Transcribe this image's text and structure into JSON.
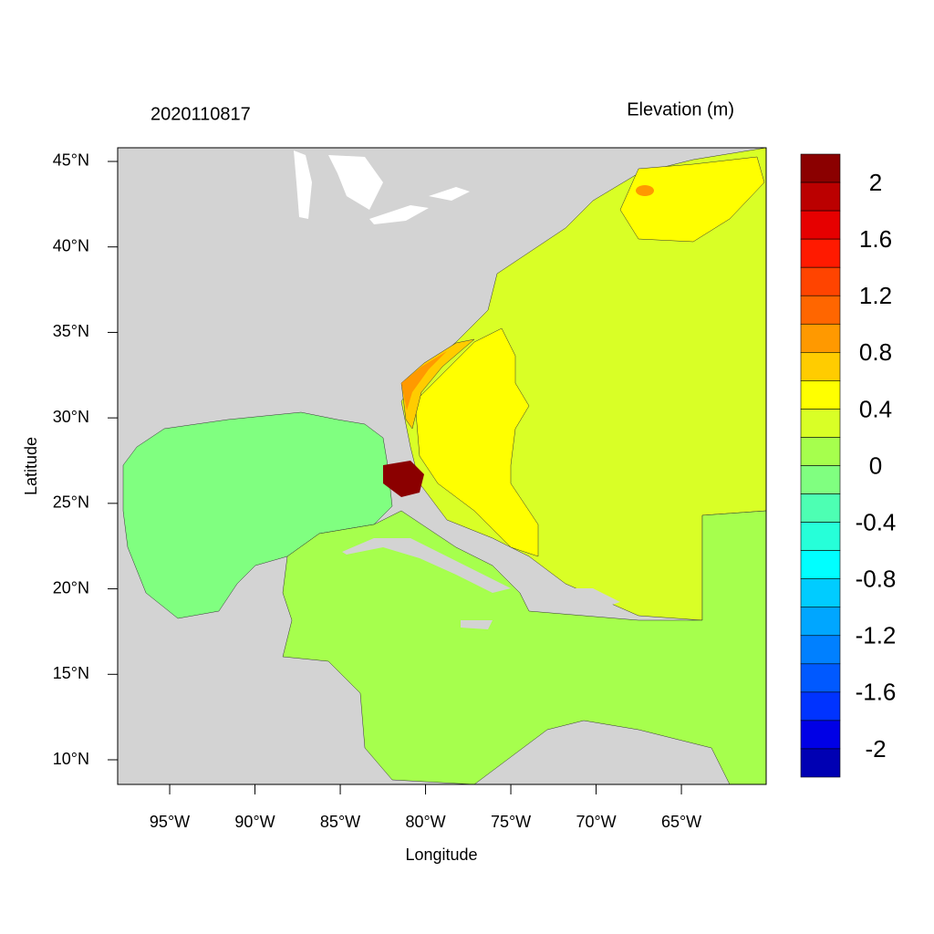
{
  "title_left": "2020110817",
  "title_right": "Elevation (m)",
  "x_label": "Longitude",
  "y_label": "Latitude",
  "xlim": [
    -98.05,
    -60.03
  ],
  "ylim": [
    8.56,
    45.8
  ],
  "xticks": [
    {
      "value": -95,
      "label": "95°W"
    },
    {
      "value": -90,
      "label": "90°W"
    },
    {
      "value": -85,
      "label": "85°W"
    },
    {
      "value": -80,
      "label": "80°W"
    },
    {
      "value": -75,
      "label": "75°W"
    },
    {
      "value": -70,
      "label": "70°W"
    },
    {
      "value": -65,
      "label": "65°W"
    }
  ],
  "yticks": [
    {
      "value": 10,
      "label": "10°N"
    },
    {
      "value": 15,
      "label": "15°N"
    },
    {
      "value": 20,
      "label": "20°N"
    },
    {
      "value": 25,
      "label": "25°N"
    },
    {
      "value": 30,
      "label": "30°N"
    },
    {
      "value": 35,
      "label": "35°N"
    },
    {
      "value": 40,
      "label": "40°N"
    },
    {
      "value": 45,
      "label": "45°N"
    }
  ],
  "colorbar": {
    "levels": [
      2,
      1.6,
      1.2,
      0.8,
      0.4,
      0,
      -0.4,
      -0.8,
      -1.2,
      -1.6,
      -2
    ],
    "colors": [
      "#8b0000",
      "#bb0000",
      "#e60000",
      "#ff1a00",
      "#ff4400",
      "#ff6600",
      "#ff9900",
      "#ffcc00",
      "#ffff00",
      "#d9ff26",
      "#a6ff4d",
      "#80ff80",
      "#4dffb3",
      "#26ffd9",
      "#00ffff",
      "#00ccff",
      "#00a6ff",
      "#0080ff",
      "#0059ff",
      "#0033ff",
      "#0000e6",
      "#0000b3"
    ]
  }
}
